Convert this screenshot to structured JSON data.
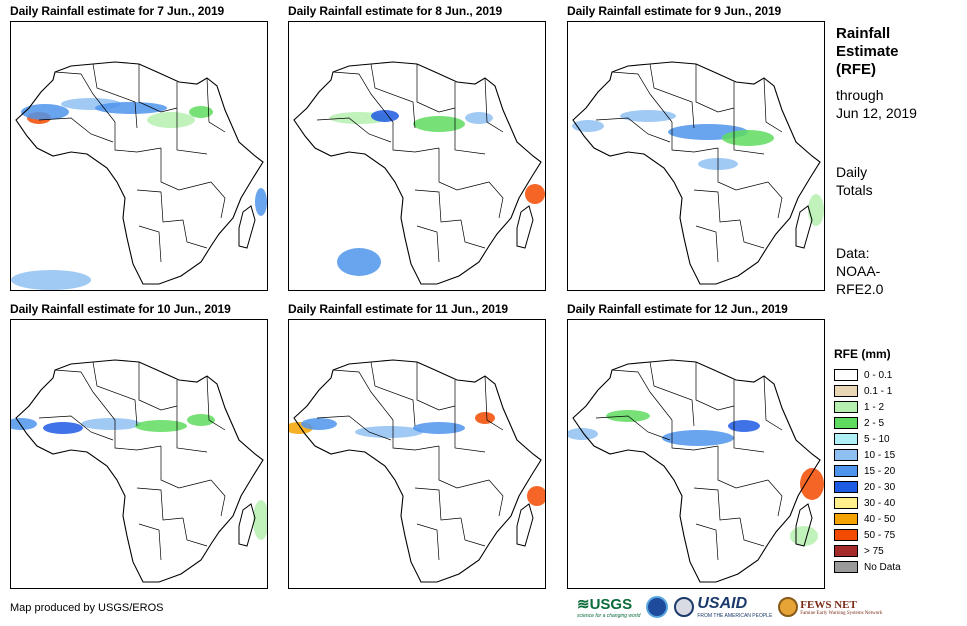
{
  "panels": [
    {
      "title": "Daily Rainfall estimate for 7 Jun., 2019",
      "date": "7 Jun., 2019"
    },
    {
      "title": "Daily Rainfall estimate for 8 Jun., 2019",
      "date": "8 Jun., 2019"
    },
    {
      "title": "Daily Rainfall estimate for 9 Jun., 2019",
      "date": "9 Jun., 2019"
    },
    {
      "title": "Daily Rainfall estimate for 10 Jun., 2019",
      "date": "10 Jun., 2019"
    },
    {
      "title": "Daily Rainfall estimate for 11 Jun., 2019",
      "date": "11 Jun., 2019"
    },
    {
      "title": "Daily Rainfall estimate for 12 Jun., 2019",
      "date": "12 Jun., 2019"
    }
  ],
  "sidebar": {
    "title_lines": [
      "Rainfall",
      "Estimate",
      "(RFE)"
    ],
    "through_lines": [
      "through",
      "Jun 12, 2019"
    ],
    "totals_lines": [
      "Daily",
      "Totals"
    ],
    "data_lines": [
      "Data:",
      "NOAA-",
      "RFE2.0"
    ]
  },
  "legend": {
    "title": "RFE (mm)",
    "items": [
      {
        "label": "0 - 0.1",
        "color": "#ffffff"
      },
      {
        "label": "0.1 - 1",
        "color": "#e9d6b5"
      },
      {
        "label": "1 - 2",
        "color": "#b6f0b0"
      },
      {
        "label": "2 - 5",
        "color": "#5fdc5f"
      },
      {
        "label": "5 - 10",
        "color": "#aef0f5"
      },
      {
        "label": "10 - 15",
        "color": "#8fc0f2"
      },
      {
        "label": "15 - 20",
        "color": "#4f94ec"
      },
      {
        "label": "20 - 30",
        "color": "#1d5be3"
      },
      {
        "label": "30 - 40",
        "color": "#fff08c"
      },
      {
        "label": "40 - 50",
        "color": "#f5a300"
      },
      {
        "label": "50 - 75",
        "color": "#f24a00"
      },
      {
        "label": "> 75",
        "color": "#a52a2a"
      },
      {
        "label": "No Data",
        "color": "#9a9a9a"
      }
    ]
  },
  "credit": "Map produced by USGS/EROS",
  "logos": {
    "usgs": "USGS",
    "usgs_tagline": "science for a changing world",
    "usaid": "USAID",
    "usaid_tagline": "FROM THE AMERICAN PEOPLE",
    "fews": "FEWS NET",
    "fews_tagline": "Famine Early Warning Systems Network"
  }
}
